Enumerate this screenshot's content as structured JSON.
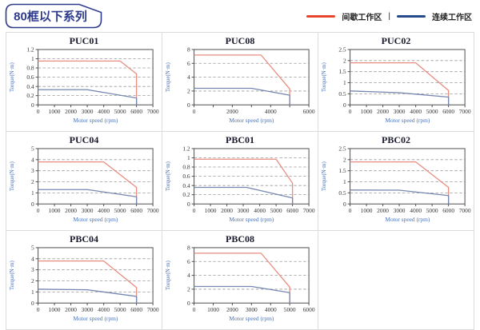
{
  "header": {
    "title": "80框以下系列",
    "legend": {
      "intermittent_label": "间歇工作区",
      "separator": "|",
      "continuous_label": "连续工作区"
    }
  },
  "colors": {
    "badge": "#2d3a8c",
    "legend_intermittent": "#e8432b",
    "legend_continuous": "#264a89",
    "intermittent_line": "#e88c80",
    "continuous_line": "#7587b0",
    "grid": "#9b9b9b",
    "frame": "#4f4f4f",
    "tick_text": "#333333",
    "axis_label": "#4a72b8",
    "title_text": "#1a1a2e",
    "cell_border": "#dcdcdc"
  },
  "chart_data": [
    {
      "type": "line",
      "title": "PUC01",
      "xlabel": "Motor speed (rpm)",
      "ylabel": "Torque(N·m)",
      "xlim": [
        0,
        7000
      ],
      "xstep": 1000,
      "ylim": [
        0,
        1.2
      ],
      "ystep": 0.2,
      "series": [
        {
          "name": "间歇工作区",
          "color_key": "intermittent",
          "points": [
            [
              0,
              0.95
            ],
            [
              5000,
              0.95
            ],
            [
              6000,
              0.67
            ],
            [
              6000,
              0
            ]
          ]
        },
        {
          "name": "连续工作区",
          "color_key": "continuous",
          "points": [
            [
              0,
              0.33
            ],
            [
              3000,
              0.33
            ],
            [
              6000,
              0.15
            ],
            [
              6000,
              0
            ]
          ]
        }
      ]
    },
    {
      "type": "line",
      "title": "PUC08",
      "xlabel": "Motor speed (rpm)",
      "ylabel": "Torque(N·m)",
      "xlim": [
        0,
        6000
      ],
      "xstep": 1000,
      "xlabel_step": 2000,
      "ylim": [
        0,
        8
      ],
      "ystep": 2,
      "series": [
        {
          "name": "间歇工作区",
          "color_key": "intermittent",
          "points": [
            [
              0,
              7.2
            ],
            [
              3500,
              7.2
            ],
            [
              5000,
              2.3
            ],
            [
              5000,
              0
            ]
          ]
        },
        {
          "name": "连续工作区",
          "color_key": "continuous",
          "points": [
            [
              0,
              2.4
            ],
            [
              3000,
              2.4
            ],
            [
              5000,
              1.4
            ],
            [
              5000,
              0
            ]
          ]
        }
      ]
    },
    {
      "type": "line",
      "title": "PUC02",
      "xlabel": "Motor speed (rpm)",
      "ylabel": "Torque(N·m)",
      "xlim": [
        0,
        7000
      ],
      "xstep": 1000,
      "ylim": [
        0,
        2.5
      ],
      "ystep": 0.5,
      "series": [
        {
          "name": "间歇工作区",
          "color_key": "intermittent",
          "points": [
            [
              0,
              1.9
            ],
            [
              4000,
              1.9
            ],
            [
              6000,
              0.65
            ],
            [
              6000,
              0
            ]
          ]
        },
        {
          "name": "连续工作区",
          "color_key": "continuous",
          "points": [
            [
              0,
              0.63
            ],
            [
              3000,
              0.55
            ],
            [
              6000,
              0.35
            ],
            [
              6000,
              0
            ]
          ]
        }
      ]
    },
    {
      "type": "line",
      "title": "PUC04",
      "xlabel": "Motor speed (rpm)",
      "ylabel": "Torque(N·m)",
      "xlim": [
        0,
        7000
      ],
      "xstep": 1000,
      "ylim": [
        0,
        5
      ],
      "ystep": 1,
      "series": [
        {
          "name": "间歇工作区",
          "color_key": "intermittent",
          "points": [
            [
              0,
              3.8
            ],
            [
              4000,
              3.8
            ],
            [
              6000,
              1.5
            ],
            [
              6000,
              0
            ]
          ]
        },
        {
          "name": "连续工作区",
          "color_key": "continuous",
          "points": [
            [
              0,
              1.3
            ],
            [
              3000,
              1.3
            ],
            [
              6000,
              0.65
            ],
            [
              6000,
              0
            ]
          ]
        }
      ]
    },
    {
      "type": "line",
      "title": "PBC01",
      "xlabel": "Motor speed (rpm)",
      "ylabel": "Torque(N·m)",
      "xlim": [
        0,
        7000
      ],
      "xstep": 1000,
      "ylim": [
        0,
        1.2
      ],
      "ystep": 0.2,
      "series": [
        {
          "name": "间歇工作区",
          "color_key": "intermittent",
          "points": [
            [
              0,
              0.97
            ],
            [
              5000,
              0.97
            ],
            [
              6000,
              0.45
            ],
            [
              6000,
              0
            ]
          ]
        },
        {
          "name": "连续工作区",
          "color_key": "continuous",
          "points": [
            [
              0,
              0.36
            ],
            [
              3200,
              0.36
            ],
            [
              6000,
              0.13
            ],
            [
              6000,
              0
            ]
          ]
        }
      ]
    },
    {
      "type": "line",
      "title": "PBC02",
      "xlabel": "Motor speed (rpm)",
      "ylabel": "Torque(N·m)",
      "xlim": [
        0,
        7000
      ],
      "xstep": 1000,
      "ylim": [
        0,
        2.5
      ],
      "ystep": 0.5,
      "series": [
        {
          "name": "间歇工作区",
          "color_key": "intermittent",
          "points": [
            [
              0,
              1.9
            ],
            [
              4000,
              1.9
            ],
            [
              6000,
              0.75
            ],
            [
              6000,
              0
            ]
          ]
        },
        {
          "name": "连续工作区",
          "color_key": "continuous",
          "points": [
            [
              0,
              0.63
            ],
            [
              3000,
              0.62
            ],
            [
              6000,
              0.38
            ],
            [
              6000,
              0
            ]
          ]
        }
      ]
    },
    {
      "type": "line",
      "title": "PBC04",
      "xlabel": "Motor speed (rpm)",
      "ylabel": "Torque(N·m)",
      "xlim": [
        0,
        7000
      ],
      "xstep": 1000,
      "ylim": [
        0,
        5
      ],
      "ystep": 1,
      "series": [
        {
          "name": "间歇工作区",
          "color_key": "intermittent",
          "points": [
            [
              0,
              3.8
            ],
            [
              4000,
              3.8
            ],
            [
              6000,
              1.4
            ],
            [
              6000,
              0
            ]
          ]
        },
        {
          "name": "连续工作区",
          "color_key": "continuous",
          "points": [
            [
              0,
              1.25
            ],
            [
              3000,
              1.2
            ],
            [
              6000,
              0.6
            ],
            [
              6000,
              0
            ]
          ]
        }
      ]
    },
    {
      "type": "line",
      "title": "PBC08",
      "xlabel": "Motor speed (rpm)",
      "ylabel": "Torque(N·m)",
      "xlim": [
        0,
        6000
      ],
      "xstep": 1000,
      "ylim": [
        0,
        8
      ],
      "ystep": 2,
      "series": [
        {
          "name": "间歇工作区",
          "color_key": "intermittent",
          "points": [
            [
              0,
              7.2
            ],
            [
              3500,
              7.2
            ],
            [
              5000,
              2.3
            ],
            [
              5000,
              0
            ]
          ]
        },
        {
          "name": "连续工作区",
          "color_key": "continuous",
          "points": [
            [
              0,
              2.4
            ],
            [
              3000,
              2.4
            ],
            [
              5000,
              1.5
            ],
            [
              5000,
              0
            ]
          ]
        }
      ]
    }
  ]
}
